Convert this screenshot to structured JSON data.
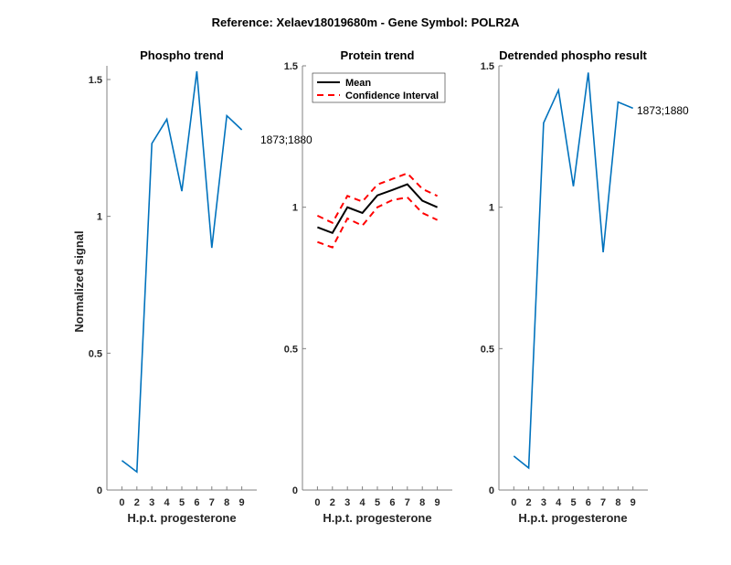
{
  "figure_title": "Reference:  Xelaev18019680m - Gene Symbol:  POLR2A",
  "colors": {
    "phospho": "#0072BD",
    "mean": "#000000",
    "ci": "#FF0000",
    "axis": "#808080"
  },
  "chart_data": [
    {
      "type": "line",
      "title": "Phospho trend",
      "xlabel": "H.p.t. progesterone",
      "ylabel": "Normalized signal",
      "categories": [
        "0",
        "2",
        "3",
        "4",
        "5",
        "6",
        "7",
        "8",
        "9"
      ],
      "ylim": [
        0,
        1.55
      ],
      "yticks": [
        0,
        0.5,
        1,
        1.5
      ],
      "ytick_labels": [
        "0",
        "0.5",
        "1",
        "1.5"
      ],
      "grid": false,
      "series": [
        {
          "name": "1873;1880",
          "values": [
            0.108,
            0.066,
            1.266,
            1.355,
            1.092,
            1.53,
            0.885,
            1.368,
            1.316
          ]
        }
      ],
      "annotation": "1873;1880"
    },
    {
      "type": "line",
      "title": "Protein trend",
      "xlabel": "H.p.t. progesterone",
      "ylabel": "",
      "categories": [
        "0",
        "2",
        "3",
        "4",
        "5",
        "6",
        "7",
        "8",
        "9"
      ],
      "ylim": [
        0,
        1.5
      ],
      "yticks": [
        0,
        0.5,
        1,
        1.5
      ],
      "ytick_labels": [
        "0",
        "0.5",
        "1",
        "1.5"
      ],
      "grid": false,
      "legend_position": "top-left",
      "series": [
        {
          "name": "Mean",
          "values": [
            0.929,
            0.909,
            1.0,
            0.98,
            1.042,
            1.061,
            1.081,
            1.023,
            1.0
          ]
        },
        {
          "name": "Confidence Interval",
          "values": [
            0.97,
            0.945,
            1.04,
            1.02,
            1.08,
            1.1,
            1.12,
            1.065,
            1.04
          ]
        },
        {
          "name": "Confidence Interval (lower)",
          "values": [
            0.877,
            0.858,
            0.96,
            0.935,
            1.0,
            1.025,
            1.035,
            0.98,
            0.955
          ]
        }
      ],
      "legend": [
        "Mean",
        "Confidence Interval"
      ]
    },
    {
      "type": "line",
      "title": "Detrended phospho result",
      "xlabel": "H.p.t. progesterone",
      "ylabel": "",
      "categories": [
        "0",
        "2",
        "3",
        "4",
        "5",
        "6",
        "7",
        "8",
        "9"
      ],
      "ylim": [
        0,
        1.5
      ],
      "yticks": [
        0,
        0.5,
        1,
        1.5
      ],
      "ytick_labels": [
        "0",
        "0.5",
        "1",
        "1.5"
      ],
      "grid": false,
      "series": [
        {
          "name": "1873;1880",
          "values": [
            0.12,
            0.078,
            1.298,
            1.414,
            1.074,
            1.476,
            0.841,
            1.372,
            1.35
          ]
        }
      ],
      "annotation": "1873;1880"
    }
  ]
}
